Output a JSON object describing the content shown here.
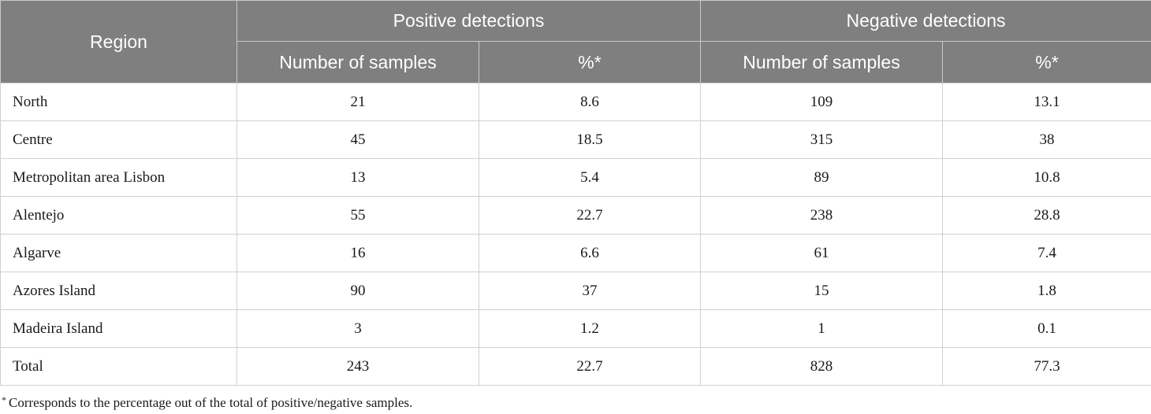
{
  "table": {
    "header": {
      "region_label": "Region",
      "group_positive": "Positive detections",
      "group_negative": "Negative detections",
      "sub_samples": "Number of samples",
      "sub_percent": "%*"
    },
    "rows": [
      {
        "region": "North",
        "pos_n": "21",
        "pos_pct": "8.6",
        "neg_n": "109",
        "neg_pct": "13.1"
      },
      {
        "region": "Centre",
        "pos_n": "45",
        "pos_pct": "18.5",
        "neg_n": "315",
        "neg_pct": "38"
      },
      {
        "region": "Metropolitan area Lisbon",
        "pos_n": "13",
        "pos_pct": "5.4",
        "neg_n": "89",
        "neg_pct": "10.8"
      },
      {
        "region": "Alentejo",
        "pos_n": "55",
        "pos_pct": "22.7",
        "neg_n": "238",
        "neg_pct": "28.8"
      },
      {
        "region": "Algarve",
        "pos_n": "16",
        "pos_pct": "6.6",
        "neg_n": "61",
        "neg_pct": "7.4"
      },
      {
        "region": "Azores Island",
        "pos_n": "90",
        "pos_pct": "37",
        "neg_n": "15",
        "neg_pct": "1.8"
      },
      {
        "region": "Madeira Island",
        "pos_n": "3",
        "pos_pct": "1.2",
        "neg_n": "1",
        "neg_pct": "0.1"
      },
      {
        "region": "Total",
        "pos_n": "243",
        "pos_pct": "22.7",
        "neg_n": "828",
        "neg_pct": "77.3"
      }
    ]
  },
  "footnote": {
    "mark": "*",
    "text": "Corresponds to the percentage out of the total of positive/negative samples."
  },
  "colors": {
    "header_bg": "#7f7f7f",
    "header_text": "#ffffff",
    "body_text": "#1a1a1a",
    "grid": "#d0d0d0"
  }
}
